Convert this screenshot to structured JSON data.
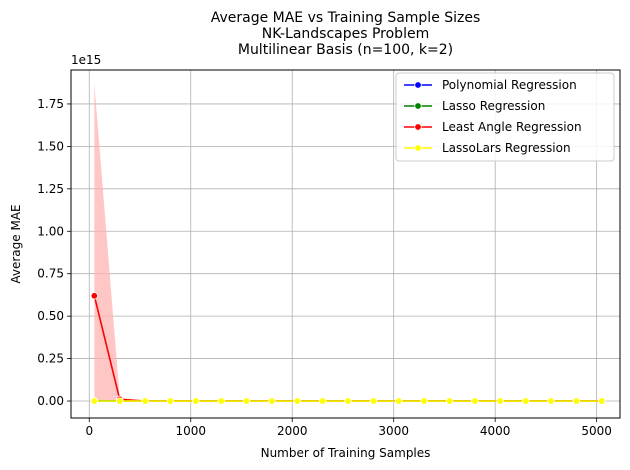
{
  "chart_data": {
    "type": "line",
    "title": [
      "Average MAE vs Training Sample Sizes",
      "NK-Landscapes Problem",
      "Multilinear Basis (n=100, k=2)"
    ],
    "xlabel": "Number of Training Samples",
    "ylabel": "Average MAE",
    "y_scale_label": "1e15",
    "xlim": [
      -180,
      5230
    ],
    "ylim": [
      -0.1,
      1.95
    ],
    "y_multiplier": 1000000000000000.0,
    "xticks": [
      0,
      1000,
      2000,
      3000,
      4000,
      5000
    ],
    "xtick_labels": [
      "0",
      "1000",
      "2000",
      "3000",
      "4000",
      "5000"
    ],
    "yticks": [
      0,
      0.25,
      0.5,
      0.75,
      1.0,
      1.25,
      1.5,
      1.75
    ],
    "ytick_labels": [
      "0.00",
      "0.25",
      "0.50",
      "0.75",
      "1.00",
      "1.25",
      "1.50",
      "1.75"
    ],
    "grid": true,
    "legend_position": "top-right",
    "x": [
      50,
      300,
      550,
      800,
      1050,
      1300,
      1550,
      1800,
      2050,
      2300,
      2550,
      2800,
      3050,
      3300,
      3550,
      3800,
      4050,
      4300,
      4550,
      4800,
      5050
    ],
    "series": [
      {
        "name": "Polynomial Regression",
        "color": "#0000ff",
        "values": [
          0,
          0,
          0,
          0,
          0,
          0,
          0,
          0,
          0,
          0,
          0,
          0,
          0,
          0,
          0,
          0,
          0,
          0,
          0,
          0,
          0
        ]
      },
      {
        "name": "Lasso Regression",
        "color": "#008000",
        "values": [
          0,
          0,
          0,
          0,
          0,
          0,
          0,
          0,
          0,
          0,
          0,
          0,
          0,
          0,
          0,
          0,
          0,
          0,
          0,
          0,
          0
        ]
      },
      {
        "name": "Least Angle Regression",
        "color": "#ff0000",
        "values": [
          0.62,
          0.01,
          0,
          0,
          0,
          0,
          0,
          0,
          0,
          0,
          0,
          0,
          0,
          0,
          0,
          0,
          0,
          0,
          0,
          0,
          0
        ],
        "band_lower": [
          0,
          0,
          0,
          0,
          0,
          0,
          0,
          0,
          0,
          0,
          0,
          0,
          0,
          0,
          0,
          0,
          0,
          0,
          0,
          0,
          0
        ],
        "band_upper": [
          1.87,
          0.02,
          0,
          0,
          0,
          0,
          0,
          0,
          0,
          0,
          0,
          0,
          0,
          0,
          0,
          0,
          0,
          0,
          0,
          0,
          0
        ],
        "band_color": "#ffb3b3"
      },
      {
        "name": "LassoLars Regression",
        "color": "#ffff00",
        "values": [
          0,
          0,
          0,
          0,
          0,
          0,
          0,
          0,
          0,
          0,
          0,
          0,
          0,
          0,
          0,
          0,
          0,
          0,
          0,
          0,
          0
        ]
      }
    ]
  }
}
